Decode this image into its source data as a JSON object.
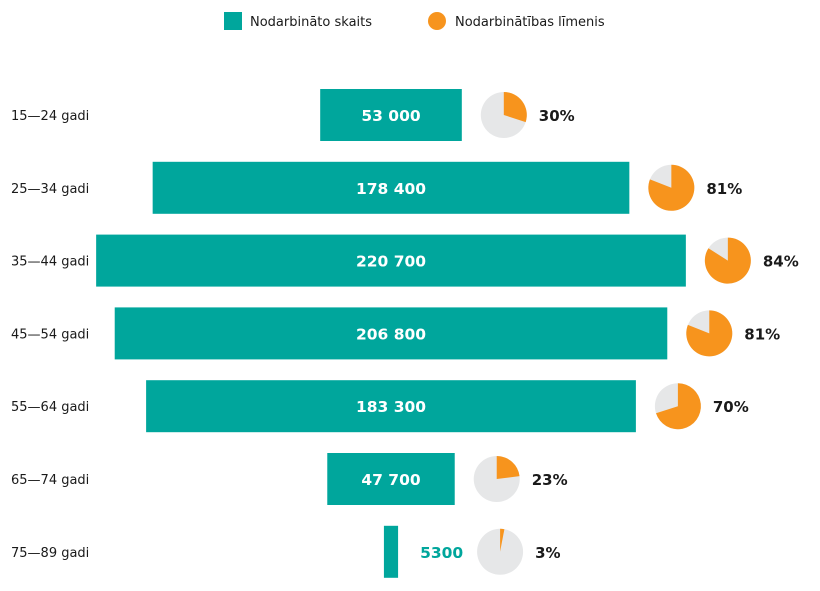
{
  "chart_data": {
    "type": "bar",
    "orientation": "horizontal-centered",
    "legend": {
      "placement": "top-center",
      "items": [
        {
          "label": "Nodarbināto skaits",
          "marker": "square"
        },
        {
          "label": "Nodarbinātības līmenis",
          "marker": "circle"
        }
      ]
    },
    "categories": [
      "15—24 gadi",
      "25—34 gadi",
      "35—44 gadi",
      "45—54 gadi",
      "55—64 gadi",
      "65—74 gadi",
      "75—89 gadi"
    ],
    "series": [
      {
        "name": "Nodarbināto skaits",
        "values": [
          53000,
          178400,
          220700,
          206800,
          183300,
          47700,
          5300
        ],
        "labels": [
          "53 000",
          "178 400",
          "220 700",
          "206 800",
          "183 300",
          "47 700",
          "5300"
        ]
      },
      {
        "name": "Nodarbinātības līmenis",
        "values": [
          30,
          81,
          84,
          81,
          70,
          23,
          3
        ],
        "labels": [
          "30%",
          "81%",
          "84%",
          "81%",
          "70%",
          "23%",
          "3%"
        ]
      }
    ],
    "grid": false
  },
  "colors": {
    "bar": "#00a69c",
    "pie_fill": "#f7941d",
    "pie_bg": "#e6e7e8",
    "bar_text": "#ffffff",
    "outside_text": "#00a69c"
  }
}
